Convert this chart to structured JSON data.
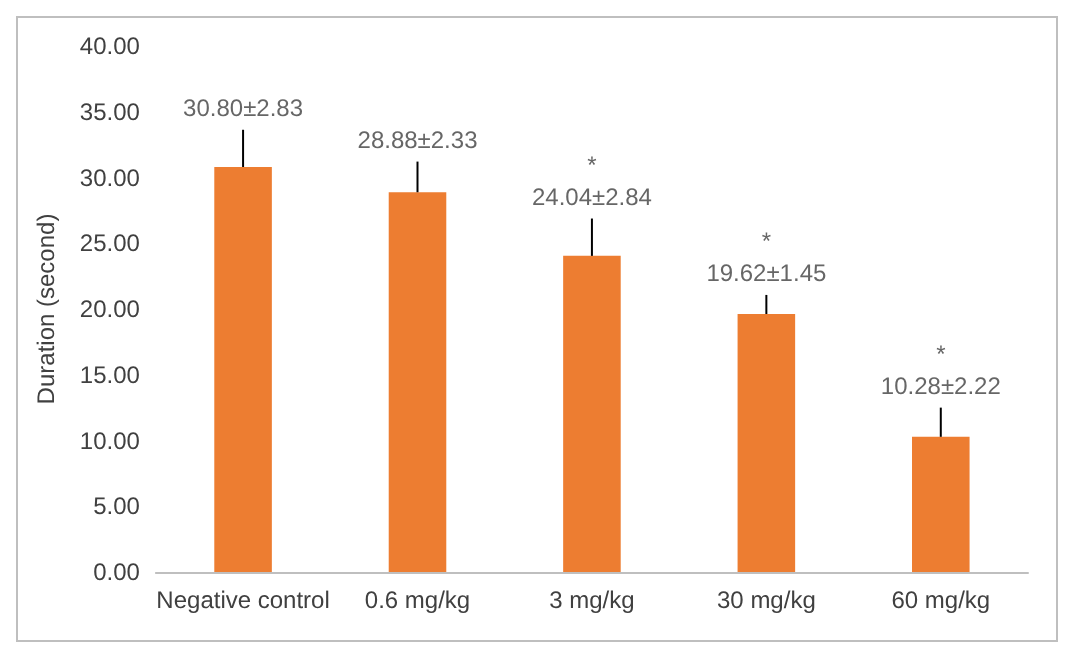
{
  "chart_data": {
    "type": "bar",
    "ylabel": "Duration (second)",
    "categories": [
      "Negative control",
      "0.6 mg/kg",
      "3 mg/kg",
      "30 mg/kg",
      "60 mg/kg"
    ],
    "values": [
      30.8,
      28.88,
      24.04,
      19.62,
      10.28
    ],
    "color": "#ed7d31",
    "errors": [
      [
        30.8,
        33.63
      ],
      [
        28.88,
        31.21
      ],
      [
        24.04,
        26.88
      ],
      [
        19.62,
        21.07
      ],
      [
        10.28,
        12.5
      ]
    ],
    "value_labels": [
      "30.80±2.83",
      "28.88±2.33",
      "*\n24.04±2.84",
      "*\n19.62±1.45",
      "*\n10.28±2.22"
    ],
    "ylim": [
      0,
      40
    ],
    "yticks": [
      {
        "value": 0,
        "label": "0.00"
      },
      {
        "value": 5,
        "label": "5.00"
      },
      {
        "value": 10,
        "label": "10.00"
      },
      {
        "value": 15,
        "label": "15.00"
      },
      {
        "value": 20,
        "label": "20.00"
      },
      {
        "value": 25,
        "label": "25.00"
      },
      {
        "value": 30,
        "label": "30.00"
      },
      {
        "value": 35,
        "label": "35.00"
      },
      {
        "value": 40,
        "label": "40.00"
      }
    ],
    "grid": false
  }
}
